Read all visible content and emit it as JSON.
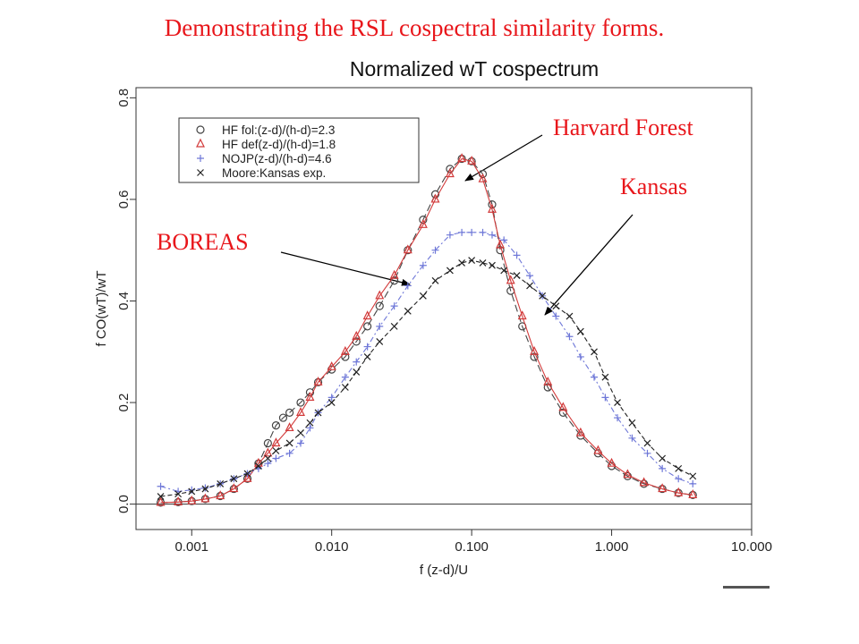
{
  "slide": {
    "title": "Demonstrating the RSL cospectral similarity forms."
  },
  "callouts": {
    "harvard": "Harvard Forest",
    "kansas": "Kansas",
    "boreas": "BOREAS"
  },
  "colors": {
    "title_red": "#e8161b",
    "hf_fol": "#444444",
    "hf_def": "#d23a3a",
    "nojp": "#6f78d8",
    "moore": "#222222"
  },
  "chart_data": {
    "type": "line",
    "title": "Normalized wT cospectrum",
    "xlabel": "f (z-d)/U",
    "ylabel": "f CO(wT)/wT",
    "x_scale": "log",
    "xlim": [
      0.0004,
      10
    ],
    "ylim": [
      -0.05,
      0.82
    ],
    "x_ticks": [
      0.001,
      0.01,
      0.1,
      1,
      10
    ],
    "x_tick_labels": [
      "0.001",
      "0.010",
      "0.100",
      "1.000",
      "10.000"
    ],
    "y_ticks": [
      0,
      0.2,
      0.4,
      0.6,
      0.8
    ],
    "y_tick_labels": [
      "0.0",
      "0.2",
      "0.4",
      "0.6",
      "0.8"
    ],
    "zero_line": true,
    "legend_position": "top-left",
    "series": [
      {
        "name": "HF fol:(z-d)/(h-d)=2.3",
        "marker": "circle",
        "color": "#444444",
        "dash": "8,4",
        "points": [
          [
            0.0006,
            0.003
          ],
          [
            0.0008,
            0.004
          ],
          [
            0.001,
            0.006
          ],
          [
            0.00125,
            0.01
          ],
          [
            0.0016,
            0.016
          ],
          [
            0.002,
            0.03
          ],
          [
            0.0025,
            0.05
          ],
          [
            0.003,
            0.08
          ],
          [
            0.0035,
            0.12
          ],
          [
            0.004,
            0.155
          ],
          [
            0.0045,
            0.17
          ],
          [
            0.005,
            0.18
          ],
          [
            0.006,
            0.2
          ],
          [
            0.007,
            0.22
          ],
          [
            0.008,
            0.24
          ],
          [
            0.01,
            0.265
          ],
          [
            0.0125,
            0.29
          ],
          [
            0.015,
            0.32
          ],
          [
            0.018,
            0.35
          ],
          [
            0.022,
            0.39
          ],
          [
            0.028,
            0.44
          ],
          [
            0.035,
            0.5
          ],
          [
            0.045,
            0.56
          ],
          [
            0.055,
            0.61
          ],
          [
            0.07,
            0.66
          ],
          [
            0.085,
            0.68
          ],
          [
            0.1,
            0.675
          ],
          [
            0.12,
            0.65
          ],
          [
            0.14,
            0.59
          ],
          [
            0.16,
            0.5
          ],
          [
            0.19,
            0.42
          ],
          [
            0.23,
            0.35
          ],
          [
            0.28,
            0.29
          ],
          [
            0.35,
            0.23
          ],
          [
            0.45,
            0.18
          ],
          [
            0.6,
            0.135
          ],
          [
            0.8,
            0.1
          ],
          [
            1.0,
            0.075
          ],
          [
            1.3,
            0.055
          ],
          [
            1.7,
            0.04
          ],
          [
            2.3,
            0.03
          ],
          [
            3.0,
            0.022
          ],
          [
            3.8,
            0.018
          ]
        ]
      },
      {
        "name": "HF def(z-d)/(h-d)=1.8",
        "marker": "triangle",
        "color": "#d23a3a",
        "dash": "",
        "points": [
          [
            0.0006,
            0.003
          ],
          [
            0.0008,
            0.004
          ],
          [
            0.001,
            0.006
          ],
          [
            0.00125,
            0.01
          ],
          [
            0.0016,
            0.016
          ],
          [
            0.002,
            0.03
          ],
          [
            0.0025,
            0.05
          ],
          [
            0.003,
            0.08
          ],
          [
            0.0035,
            0.1
          ],
          [
            0.004,
            0.12
          ],
          [
            0.005,
            0.15
          ],
          [
            0.006,
            0.18
          ],
          [
            0.007,
            0.21
          ],
          [
            0.008,
            0.24
          ],
          [
            0.01,
            0.27
          ],
          [
            0.0125,
            0.3
          ],
          [
            0.015,
            0.33
          ],
          [
            0.018,
            0.37
          ],
          [
            0.022,
            0.41
          ],
          [
            0.028,
            0.45
          ],
          [
            0.035,
            0.5
          ],
          [
            0.045,
            0.55
          ],
          [
            0.055,
            0.6
          ],
          [
            0.07,
            0.65
          ],
          [
            0.085,
            0.68
          ],
          [
            0.1,
            0.675
          ],
          [
            0.12,
            0.64
          ],
          [
            0.14,
            0.58
          ],
          [
            0.16,
            0.51
          ],
          [
            0.19,
            0.44
          ],
          [
            0.23,
            0.37
          ],
          [
            0.28,
            0.3
          ],
          [
            0.35,
            0.24
          ],
          [
            0.45,
            0.19
          ],
          [
            0.6,
            0.14
          ],
          [
            0.8,
            0.105
          ],
          [
            1.0,
            0.08
          ],
          [
            1.3,
            0.058
          ],
          [
            1.7,
            0.042
          ],
          [
            2.3,
            0.03
          ],
          [
            3.0,
            0.022
          ],
          [
            3.8,
            0.018
          ]
        ]
      },
      {
        "name": "NOJP(z-d)/(h-d)=4.6",
        "marker": "plus",
        "color": "#6f78d8",
        "dash": "6,3,2,3",
        "points": [
          [
            0.0006,
            0.035
          ],
          [
            0.0008,
            0.025
          ],
          [
            0.001,
            0.028
          ],
          [
            0.00125,
            0.032
          ],
          [
            0.0016,
            0.04
          ],
          [
            0.002,
            0.05
          ],
          [
            0.0025,
            0.06
          ],
          [
            0.003,
            0.07
          ],
          [
            0.0035,
            0.08
          ],
          [
            0.004,
            0.09
          ],
          [
            0.005,
            0.1
          ],
          [
            0.006,
            0.12
          ],
          [
            0.007,
            0.15
          ],
          [
            0.008,
            0.18
          ],
          [
            0.01,
            0.21
          ],
          [
            0.0125,
            0.25
          ],
          [
            0.015,
            0.28
          ],
          [
            0.018,
            0.31
          ],
          [
            0.022,
            0.35
          ],
          [
            0.028,
            0.39
          ],
          [
            0.035,
            0.43
          ],
          [
            0.045,
            0.47
          ],
          [
            0.055,
            0.5
          ],
          [
            0.07,
            0.53
          ],
          [
            0.085,
            0.535
          ],
          [
            0.1,
            0.535
          ],
          [
            0.12,
            0.535
          ],
          [
            0.14,
            0.53
          ],
          [
            0.17,
            0.52
          ],
          [
            0.21,
            0.49
          ],
          [
            0.26,
            0.45
          ],
          [
            0.32,
            0.41
          ],
          [
            0.4,
            0.37
          ],
          [
            0.5,
            0.33
          ],
          [
            0.6,
            0.29
          ],
          [
            0.75,
            0.25
          ],
          [
            0.9,
            0.21
          ],
          [
            1.1,
            0.17
          ],
          [
            1.4,
            0.13
          ],
          [
            1.8,
            0.1
          ],
          [
            2.3,
            0.07
          ],
          [
            3.0,
            0.05
          ],
          [
            3.8,
            0.04
          ]
        ]
      },
      {
        "name": "Moore:Kansas exp.",
        "marker": "cross",
        "color": "#222222",
        "dash": "5,3",
        "points": [
          [
            0.0006,
            0.015
          ],
          [
            0.0008,
            0.02
          ],
          [
            0.001,
            0.025
          ],
          [
            0.00125,
            0.03
          ],
          [
            0.0016,
            0.04
          ],
          [
            0.002,
            0.05
          ],
          [
            0.0025,
            0.06
          ],
          [
            0.003,
            0.075
          ],
          [
            0.0035,
            0.09
          ],
          [
            0.004,
            0.105
          ],
          [
            0.005,
            0.12
          ],
          [
            0.006,
            0.14
          ],
          [
            0.007,
            0.16
          ],
          [
            0.008,
            0.18
          ],
          [
            0.01,
            0.2
          ],
          [
            0.0125,
            0.23
          ],
          [
            0.015,
            0.26
          ],
          [
            0.018,
            0.29
          ],
          [
            0.022,
            0.32
          ],
          [
            0.028,
            0.35
          ],
          [
            0.035,
            0.38
          ],
          [
            0.045,
            0.41
          ],
          [
            0.055,
            0.44
          ],
          [
            0.07,
            0.46
          ],
          [
            0.085,
            0.475
          ],
          [
            0.1,
            0.48
          ],
          [
            0.12,
            0.475
          ],
          [
            0.14,
            0.47
          ],
          [
            0.17,
            0.46
          ],
          [
            0.21,
            0.45
          ],
          [
            0.26,
            0.43
          ],
          [
            0.32,
            0.41
          ],
          [
            0.4,
            0.39
          ],
          [
            0.5,
            0.37
          ],
          [
            0.6,
            0.34
          ],
          [
            0.75,
            0.3
          ],
          [
            0.9,
            0.25
          ],
          [
            1.1,
            0.2
          ],
          [
            1.4,
            0.16
          ],
          [
            1.8,
            0.12
          ],
          [
            2.3,
            0.09
          ],
          [
            3.0,
            0.07
          ],
          [
            3.8,
            0.055
          ]
        ]
      }
    ]
  }
}
